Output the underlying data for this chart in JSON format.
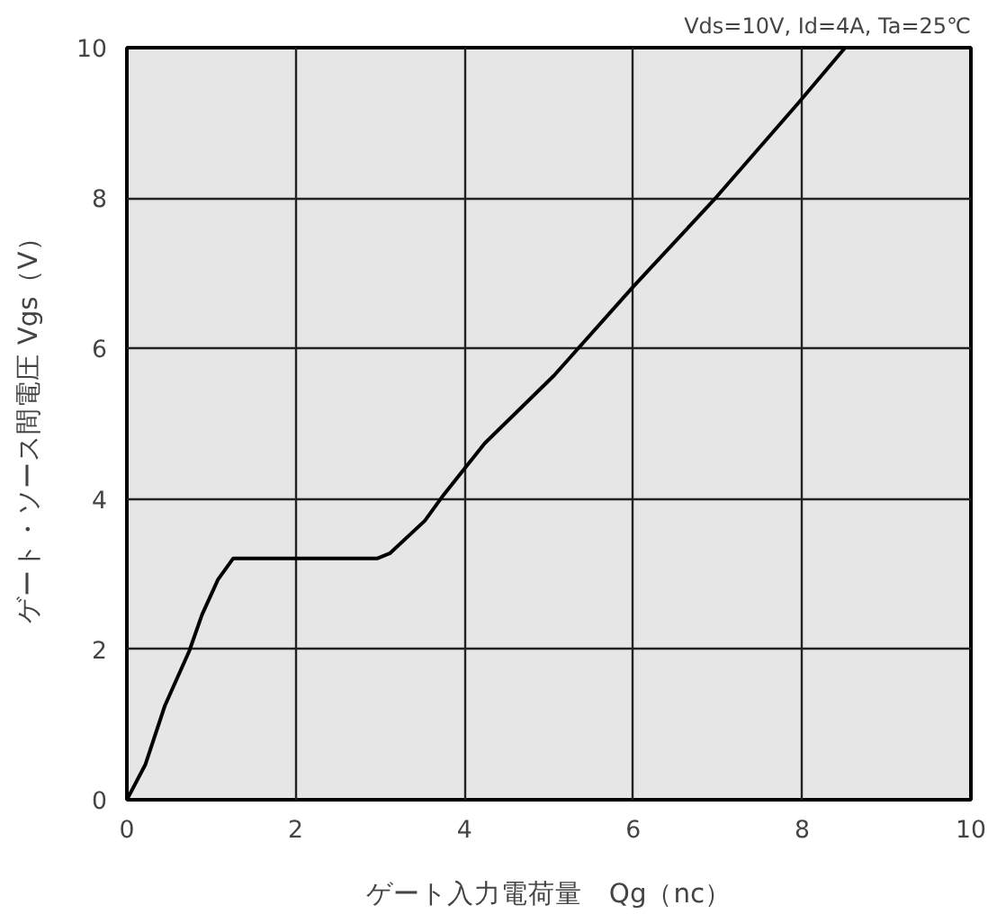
{
  "chart_data": {
    "type": "line",
    "subtitle": "Vds=10V, Id=4A, Ta=25℃",
    "xlabel": "ゲート入力電荷量　Qg（nc）",
    "ylabel": "ゲート・ソース間電圧 Vgs（V）",
    "x": [
      0,
      0.22,
      0.45,
      0.74,
      0.89,
      1.08,
      1.26,
      2.97,
      3.12,
      3.53,
      3.75,
      4.24,
      5.06,
      5.99,
      6.95,
      7.96,
      8.51
    ],
    "series": [
      {
        "color": "#000000",
        "values": [
          0,
          0.47,
          1.25,
          1.98,
          2.46,
          2.93,
          3.21,
          3.21,
          3.28,
          3.71,
          4.05,
          4.74,
          5.64,
          6.81,
          7.97,
          9.27,
          10.0
        ]
      }
    ],
    "xlim": [
      0,
      10
    ],
    "ylim": [
      0,
      10
    ],
    "xticks": [
      0,
      2,
      4,
      6,
      8,
      10
    ],
    "yticks": [
      0,
      2,
      4,
      6,
      8,
      10
    ],
    "grid": true,
    "marker": "none",
    "line_style": "solid"
  }
}
